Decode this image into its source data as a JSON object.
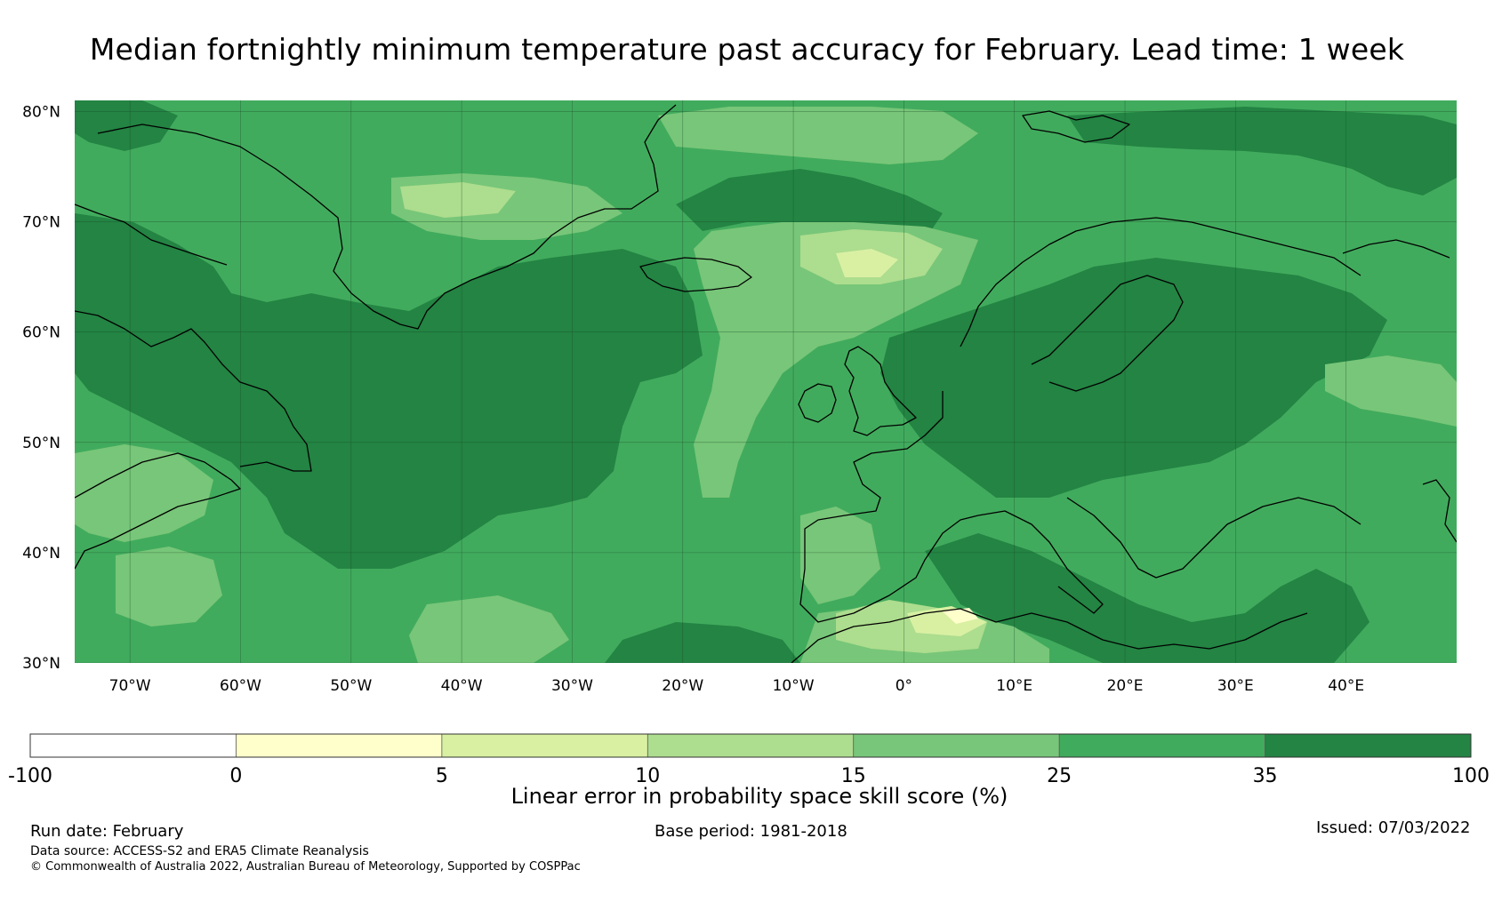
{
  "title": "Median fortnightly minimum temperature past accuracy for February. Lead time: 1 week",
  "map": {
    "lon_range": [
      -75,
      50
    ],
    "lat_range": [
      30,
      81
    ],
    "lat_ticks": [
      {
        "value": 80,
        "label": "80°N"
      },
      {
        "value": 70,
        "label": "70°N"
      },
      {
        "value": 60,
        "label": "60°N"
      },
      {
        "value": 50,
        "label": "50°N"
      },
      {
        "value": 40,
        "label": "40°N"
      },
      {
        "value": 30,
        "label": "30°N"
      }
    ],
    "lon_ticks": [
      {
        "value": -70,
        "label": "70°W"
      },
      {
        "value": -60,
        "label": "60°W"
      },
      {
        "value": -50,
        "label": "50°W"
      },
      {
        "value": -40,
        "label": "40°W"
      },
      {
        "value": -30,
        "label": "30°W"
      },
      {
        "value": -20,
        "label": "20°W"
      },
      {
        "value": -10,
        "label": "10°W"
      },
      {
        "value": 0,
        "label": "0°"
      },
      {
        "value": 10,
        "label": "10°E"
      },
      {
        "value": 20,
        "label": "20°E"
      },
      {
        "value": 30,
        "label": "30°E"
      },
      {
        "value": 40,
        "label": "40°E"
      }
    ],
    "base_color": "#41ab5d"
  },
  "colorbar": {
    "title": "Linear error in probability space skill score (%)",
    "tick_labels": [
      "-100",
      "0",
      "5",
      "10",
      "15",
      "25",
      "35",
      "100"
    ],
    "bins": [
      {
        "from": -100,
        "to": 0,
        "color": "#ffffff"
      },
      {
        "from": 0,
        "to": 5,
        "color": "#ffffcc"
      },
      {
        "from": 5,
        "to": 10,
        "color": "#d9f0a3"
      },
      {
        "from": 10,
        "to": 15,
        "color": "#addd8e"
      },
      {
        "from": 15,
        "to": 25,
        "color": "#78c679"
      },
      {
        "from": 25,
        "to": 35,
        "color": "#41ab5d"
      },
      {
        "from": 35,
        "to": 100,
        "color": "#238443"
      }
    ]
  },
  "footer": {
    "run_date": "Run date: February",
    "data_source": "Data source: ACCESS-S2 and ERA5 Climate Reanalysis",
    "copyright": "© Commonwealth of Australia 2022, Australian Bureau of Meteorology, Supported by COSPPac",
    "base_period": "Base period: 1981-2018",
    "issued": "Issued: 07/03/2022"
  }
}
